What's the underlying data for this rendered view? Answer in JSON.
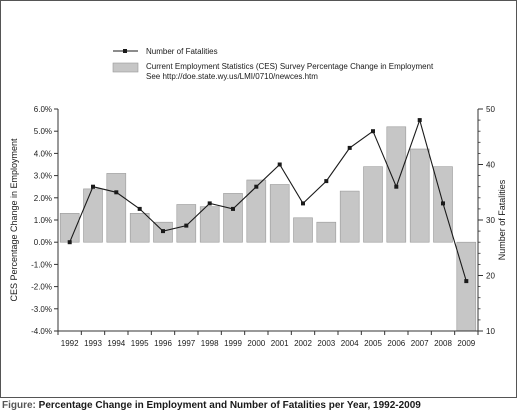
{
  "caption": {
    "prefix": "Figure:",
    "title": "Percentage Change in Employment and Number of Fatalities per Year, 1992-2009"
  },
  "chart_data": {
    "type": "bar+line",
    "categories": [
      "1992",
      "1993",
      "1994",
      "1995",
      "1996",
      "1997",
      "1998",
      "1999",
      "2000",
      "2001",
      "2002",
      "2003",
      "2004",
      "2005",
      "2006",
      "2007",
      "2008",
      "2009"
    ],
    "series": [
      {
        "name": "Current Employment Statistics (CES) Survey Percentage Change in Employment",
        "type": "bar",
        "axis": "left",
        "values": [
          1.3,
          2.4,
          3.1,
          1.3,
          0.9,
          1.7,
          1.6,
          2.2,
          2.8,
          2.6,
          1.1,
          0.9,
          2.3,
          3.4,
          5.2,
          4.2,
          3.4,
          -4.0
        ]
      },
      {
        "name": "Number of Fatalities",
        "type": "line",
        "axis": "right",
        "values": [
          26,
          36,
          35,
          32,
          28,
          29,
          33,
          32,
          36,
          40,
          33,
          37,
          43,
          46,
          36,
          48,
          33,
          19
        ]
      }
    ],
    "legend_note": "See http://doe.state.wy.us/LMI/0710/newces.htm",
    "ylabel_left": "CES Percentage Change in Employment",
    "ylabel_right": "Number of Fatalities",
    "ylim_left": [
      -4.0,
      6.0
    ],
    "ylim_right": [
      10,
      50
    ],
    "yticks_left": [
      "6.0%",
      "5.0%",
      "4.0%",
      "3.0%",
      "2.0%",
      "1.0%",
      "0.0%",
      "-1.0%",
      "-2.0%",
      "-3.0%",
      "-4.0%"
    ],
    "yticks_right": [
      "50",
      "40",
      "30",
      "20",
      "10"
    ],
    "grid": false,
    "legend_position": "top-center",
    "colors": {
      "bar_fill": "#c6c6c6",
      "bar_stroke": "#9a9a9a",
      "line": "#1a1a1a",
      "axis": "#333333"
    }
  }
}
